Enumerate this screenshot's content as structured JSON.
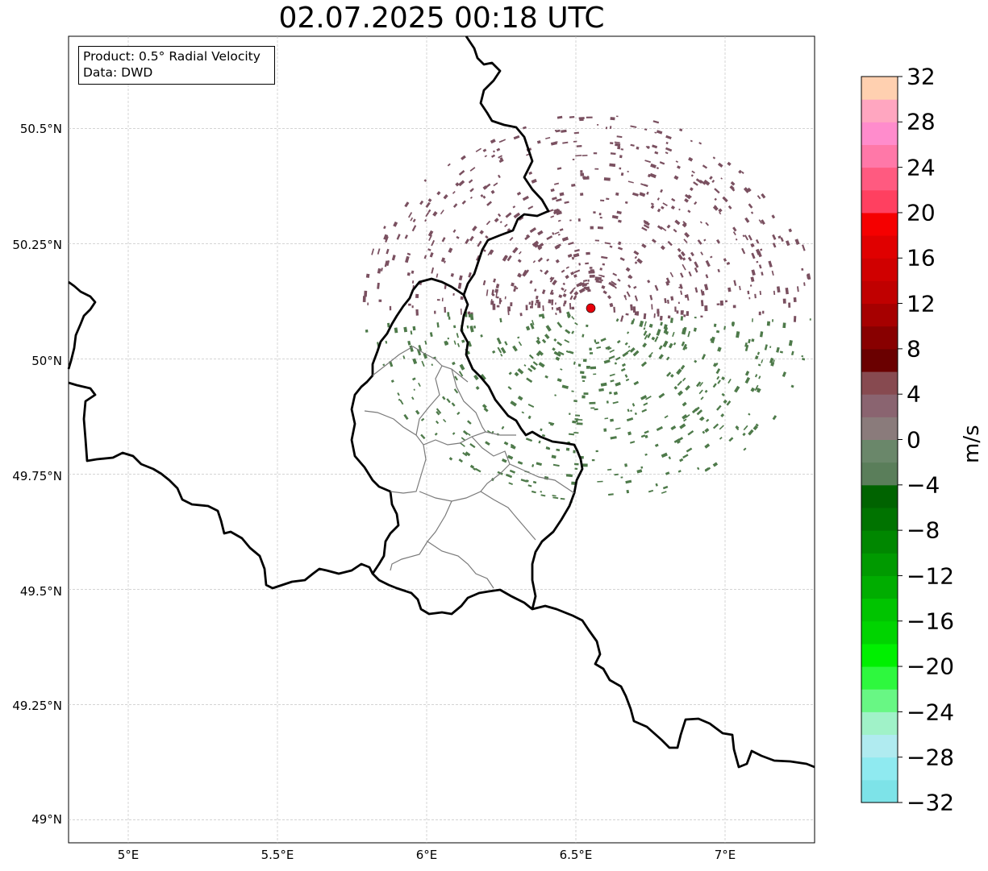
{
  "title": "02.07.2025 00:18 UTC",
  "info_box": {
    "product": "Product: 0.5° Radial Velocity",
    "data": "Data: DWD"
  },
  "map": {
    "lon_range": [
      4.8,
      7.3
    ],
    "lat_range": [
      48.95,
      50.7
    ],
    "lat_ticks": [
      {
        "value": 50.5,
        "label": "50.5°N"
      },
      {
        "value": 50.25,
        "label": "50.25°N"
      },
      {
        "value": 50.0,
        "label": "50°N"
      },
      {
        "value": 49.75,
        "label": "49.75°N"
      },
      {
        "value": 49.5,
        "label": "49.5°N"
      },
      {
        "value": 49.25,
        "label": "49.25°N"
      },
      {
        "value": 49.0,
        "label": "49°N"
      }
    ],
    "lon_ticks": [
      {
        "value": 5.0,
        "label": "5°E"
      },
      {
        "value": 5.5,
        "label": "5.5°E"
      },
      {
        "value": 6.0,
        "label": "6°E"
      },
      {
        "value": 6.5,
        "label": "6.5°E"
      },
      {
        "value": 7.0,
        "label": "7°E"
      }
    ],
    "radar_site": {
      "lon": 6.55,
      "lat": 50.11,
      "color": "#e8000b"
    },
    "grid": true
  },
  "colorbar": {
    "label": "m/s",
    "min": -32,
    "max": 32,
    "ticks": [
      "32",
      "28",
      "24",
      "20",
      "16",
      "12",
      "8",
      "4",
      "0",
      "−4",
      "−8",
      "−12",
      "−16",
      "−20",
      "−24",
      "−28",
      "−32"
    ],
    "colors_bottom_to_top": [
      "#7de3e8",
      "#8feaf0",
      "#b0ebf0",
      "#a0f2c8",
      "#68f784",
      "#2ef83e",
      "#00f000",
      "#00d400",
      "#00c400",
      "#00ad00",
      "#009a00",
      "#008700",
      "#007300",
      "#006300",
      "#5a7e5a",
      "#6a876a",
      "#8a7b7b",
      "#8a6470",
      "#874a50",
      "#6a0000",
      "#880000",
      "#a60000",
      "#c00000",
      "#d00000",
      "#e00000",
      "#f50000",
      "#ff4060",
      "#ff5a80",
      "#ff78a8",
      "#ff8ccc",
      "#ffa6c0",
      "#ffd0b0"
    ]
  },
  "echo_colors": {
    "inbound_green": "#4e7a4a",
    "outbound_brown": "#7a5060"
  }
}
